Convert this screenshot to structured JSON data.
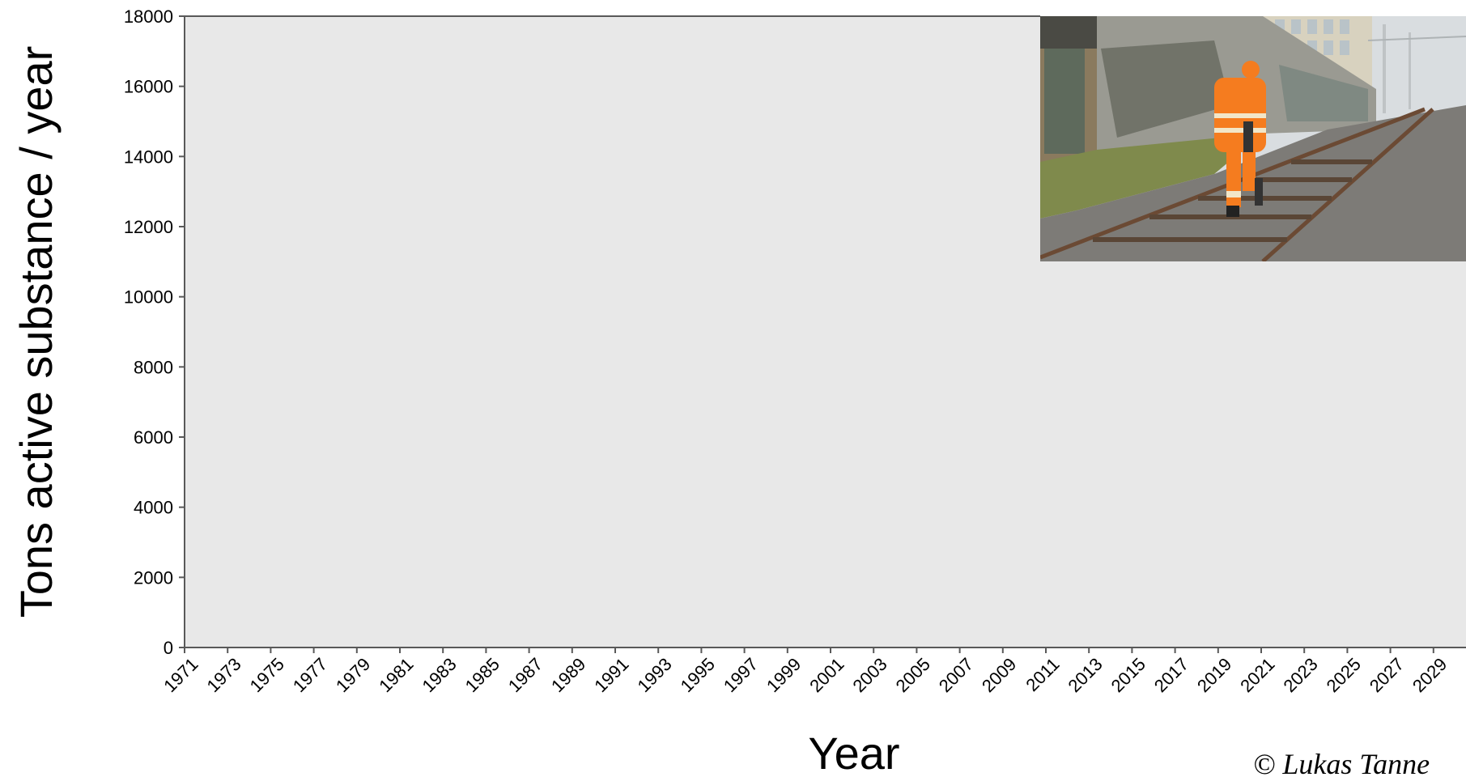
{
  "chart_data": {
    "type": "bar",
    "categories": [
      "1971",
      "1973",
      "1975",
      "1977",
      "1979",
      "1981",
      "1983",
      "1985",
      "1987",
      "1989",
      "1991",
      "1993",
      "1995",
      "1997",
      "1999",
      "2001",
      "2003",
      "2005",
      "2007",
      "2009",
      "2011",
      "2013",
      "2015",
      "2017",
      "2019",
      "2021",
      "2023",
      "2025",
      "2027",
      "2029"
    ],
    "series": [],
    "xlabel": "Year",
    "ylabel": "Tons active substance / year",
    "ylim": [
      0,
      18000
    ],
    "yticks": [
      0,
      2000,
      4000,
      6000,
      8000,
      10000,
      12000,
      14000,
      16000,
      18000
    ],
    "grid": false,
    "plot_background": "#e8e8e8"
  },
  "photo": {
    "description_icon": "worker-on-railway-track-photo"
  },
  "credit": "© Lukas Tanne",
  "colors": {
    "plot_background": "#e8e8e8",
    "axis": "#595959",
    "worker_orange": "#f57c1f"
  }
}
